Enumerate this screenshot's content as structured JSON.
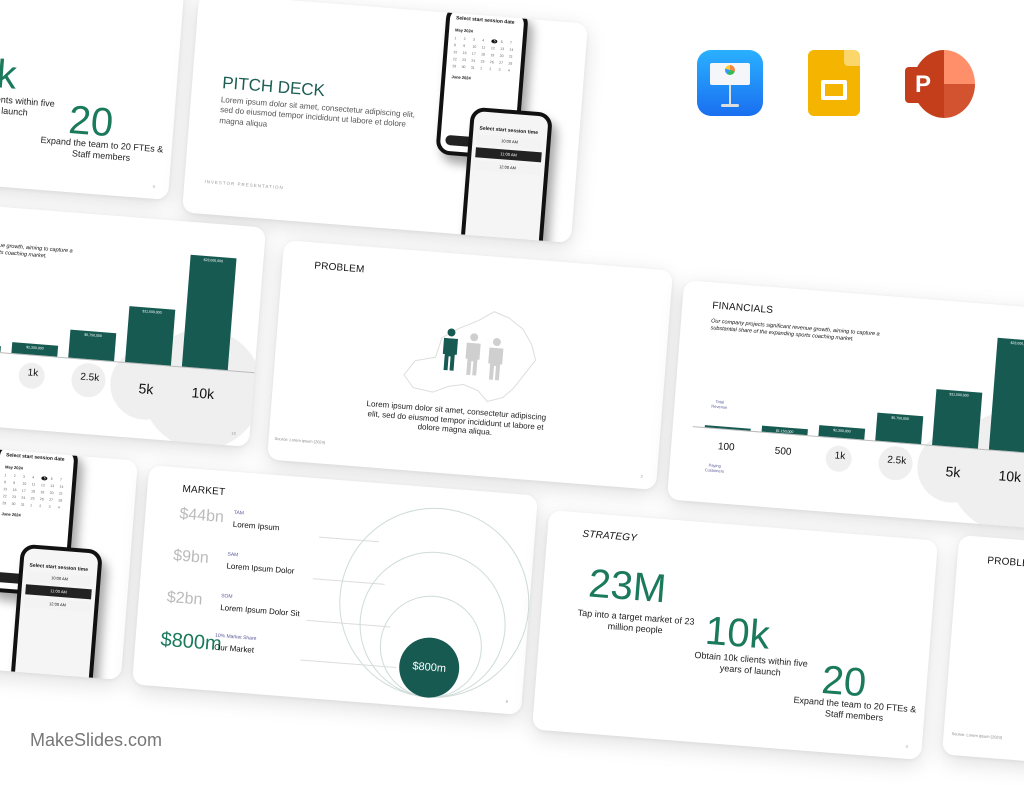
{
  "brand": {
    "watermark": "MakeSlides.com",
    "accent": "#175a52",
    "green": "#1b7a5c"
  },
  "apps": [
    {
      "name": "Keynote",
      "icon": "keynote-icon"
    },
    {
      "name": "Google Slides",
      "icon": "google-slides-icon"
    },
    {
      "name": "PowerPoint",
      "icon": "powerpoint-icon",
      "letter": "P"
    }
  ],
  "strategy": {
    "title": "STRATEGY",
    "stats": [
      {
        "value": "23M",
        "caption": "Tap into a target market of 23 million people"
      },
      {
        "value": "10k",
        "caption": "Obtain 10k clients within five years of launch"
      },
      {
        "value": "20",
        "caption": "Expand the team to 20 FTEs & Staff members"
      }
    ],
    "page": "4"
  },
  "pitch": {
    "title": "PITCH DECK",
    "body": "Lorem ipsum dolor sit amet, consectetur adipiscing elit, sed do eiusmod tempor incididunt ut labore et dolore magna aliqua",
    "footer": "INVESTOR PRESENTATION",
    "phone1": {
      "title": "Select start session date",
      "month1": "May 2024",
      "month2": "June 2024",
      "button": "Next"
    },
    "phone2": {
      "title": "Select start session time",
      "slots": [
        "10:00 AM",
        "11:00 AM",
        "12:00 AM"
      ]
    }
  },
  "problem": {
    "title": "PROBLEM",
    "body": "Lorem ipsum dolor sit amet, consectetur adipiscing elit, sed do eiusmod tempor incididunt ut labore et dolore magna aliqua.",
    "source": "Source: Lorem ipsum (2024)",
    "page": "2"
  },
  "financials": {
    "title": "FINANCIALS",
    "body": "Our company projects significant revenue growth, aiming to capture a substantial share of the expanding sports coaching market.",
    "y_label": "Total Revenue",
    "x_label": "Paying Customers",
    "page": "10"
  },
  "chart_data": {
    "type": "bar",
    "categories": [
      "100",
      "500",
      "1k",
      "2.5k",
      "5k",
      "10k"
    ],
    "values": [
      230000,
      1150000,
      2300000,
      5750000,
      11500000,
      23000000
    ],
    "value_labels": [
      "",
      "$1,150,000",
      "$2,300,000",
      "$5,750,000",
      "$11,500,000",
      "$23,000,000"
    ],
    "xlabel": "Paying Customers",
    "ylabel": "Total Revenue"
  },
  "market": {
    "title": "MARKET",
    "rows": [
      {
        "value": "$44bn",
        "tag": "TAM",
        "name": "Lorem Ipsum"
      },
      {
        "value": "$9bn",
        "tag": "SAM",
        "name": "Lorem Ipsum Dolor"
      },
      {
        "value": "$2bn",
        "tag": "SOM",
        "name": "Lorem Ipsum Dolor Sit"
      },
      {
        "value": "$800m",
        "tag": "10% Market Share",
        "name": "Our Market"
      }
    ],
    "bubble": "$800m",
    "page": "8"
  }
}
